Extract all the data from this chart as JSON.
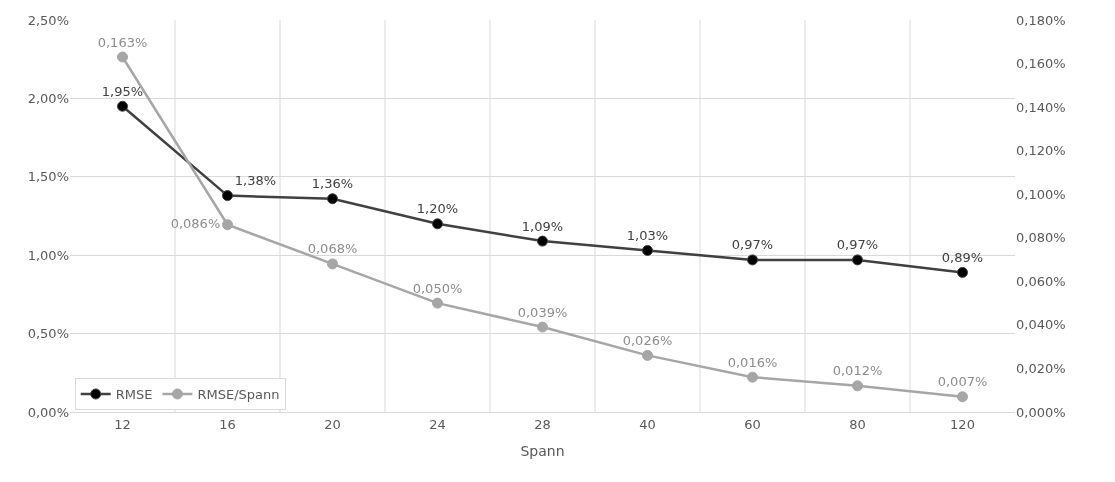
{
  "chart_data": {
    "type": "line",
    "xlabel": "Spann",
    "categories": [
      "12",
      "16",
      "20",
      "24",
      "28",
      "40",
      "60",
      "80",
      "120"
    ],
    "series": [
      {
        "name": "RMSE",
        "color": "#404040",
        "axis": "y",
        "values": [
          1.95,
          1.38,
          1.36,
          1.2,
          1.09,
          1.03,
          0.97,
          0.97,
          0.89
        ],
        "value_labels": [
          "1,95%",
          "1,38%",
          "1,36%",
          "1,20%",
          "1,09%",
          "1,03%",
          "0,97%",
          "0,97%",
          "0,89%"
        ]
      },
      {
        "name": "RMSE/Spann",
        "color": "#a6a6a6",
        "axis": "y2",
        "values": [
          0.163,
          0.086,
          0.068,
          0.05,
          0.039,
          0.026,
          0.016,
          0.012,
          0.007
        ],
        "value_labels": [
          "0,163%",
          "0,086%",
          "0,068%",
          "0,050%",
          "0,039%",
          "0,026%",
          "0,016%",
          "0,012%",
          "0,007%"
        ]
      }
    ],
    "ylim": [
      0,
      2.5
    ],
    "yticks": [
      {
        "value": 0,
        "label": "0,00%"
      },
      {
        "value": 0.5,
        "label": "0,50%"
      },
      {
        "value": 1.0,
        "label": "1,00%"
      },
      {
        "value": 1.5,
        "label": "1,50%"
      },
      {
        "value": 2.0,
        "label": "2,00%"
      },
      {
        "value": 2.5,
        "label": "2,50%"
      }
    ],
    "y2lim": [
      0,
      0.18
    ],
    "y2ticks": [
      {
        "value": 0,
        "label": "0,000%"
      },
      {
        "value": 0.02,
        "label": "0,020%"
      },
      {
        "value": 0.04,
        "label": "0,040%"
      },
      {
        "value": 0.06,
        "label": "0,060%"
      },
      {
        "value": 0.08,
        "label": "0,080%"
      },
      {
        "value": 0.1,
        "label": "0,100%"
      },
      {
        "value": 0.12,
        "label": "0,120%"
      },
      {
        "value": 0.14,
        "label": "0,140%"
      },
      {
        "value": 0.16,
        "label": "0,160%"
      },
      {
        "value": 0.18,
        "label": "0,180%"
      }
    ],
    "grid": true,
    "legend": "bottom left",
    "marker": "circle",
    "line_style": "solid"
  }
}
